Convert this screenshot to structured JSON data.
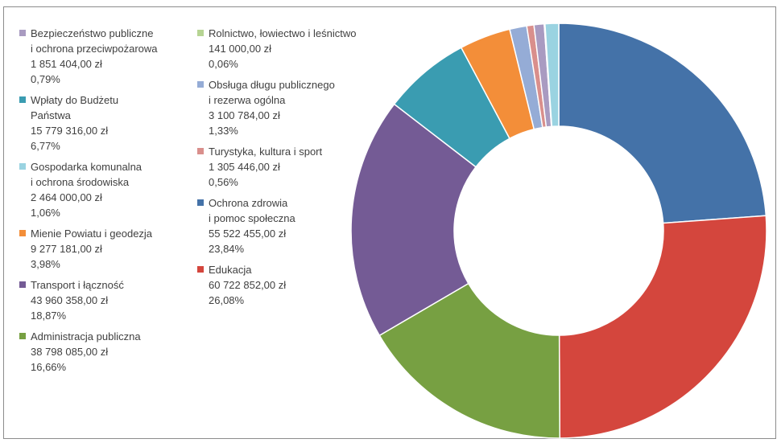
{
  "chart_data": {
    "type": "pie",
    "variant": "donut",
    "title": "",
    "slices": [
      {
        "label": "Ochrona zdrowia\ni pomoc społeczna",
        "amount": "55 522 455,00 zł",
        "percent_label": "23,84%",
        "value": 23.84,
        "color": "#4472a8"
      },
      {
        "label": "Edukacja",
        "amount": "60 722 852,00 zł",
        "percent_label": "26,08%",
        "value": 26.08,
        "color": "#d4463d"
      },
      {
        "label": "Administracja publiczna",
        "amount": "38 798 085,00 zł",
        "percent_label": "16,66%",
        "value": 16.66,
        "color": "#77a042"
      },
      {
        "label": "Transport i łączność",
        "amount": "43 960 358,00 zł",
        "percent_label": "18,87%",
        "value": 18.87,
        "color": "#745b95"
      },
      {
        "label": "Wpłaty do Budżetu\nPaństwa",
        "amount": "15 779 316,00 zł",
        "percent_label": "6,77%",
        "value": 6.77,
        "color": "#3a9cb1"
      },
      {
        "label": "Mienie Powiatu i geodezja",
        "amount": "9 277 181,00 zł",
        "percent_label": "3,98%",
        "value": 3.98,
        "color": "#f38e39"
      },
      {
        "label": "Obsługa długu publicznego\ni rezerwa ogólna",
        "amount": "3 100 784,00 zł",
        "percent_label": "1,33%",
        "value": 1.33,
        "color": "#95acd6"
      },
      {
        "label": "Turystyka, kultura i sport",
        "amount": "1 305 446,00 zł",
        "percent_label": "0,56%",
        "value": 0.56,
        "color": "#d98f8c"
      },
      {
        "label": "Bezpieczeństwo publiczne\ni ochrona przeciwpożarowa",
        "amount": "1 851 404,00 zł",
        "percent_label": "0,79%",
        "value": 0.79,
        "color": "#a99bc1"
      },
      {
        "label": "Rolnictwo, łowiectwo i leśnictwo",
        "amount": "141 000,00 zł",
        "percent_label": "0,06%",
        "value": 0.06,
        "color": "#b6d493"
      },
      {
        "label": "Gospodarka komunalna\ni ochrona środowiska",
        "amount": "2 464 000,00 zł",
        "percent_label": "1,06%",
        "value": 1.06,
        "color": "#9ad3e1"
      }
    ],
    "legend_left": [
      8,
      4,
      10,
      5,
      3,
      2
    ],
    "legend_right": [
      9,
      6,
      7,
      0,
      1
    ],
    "legend_position": "left"
  }
}
